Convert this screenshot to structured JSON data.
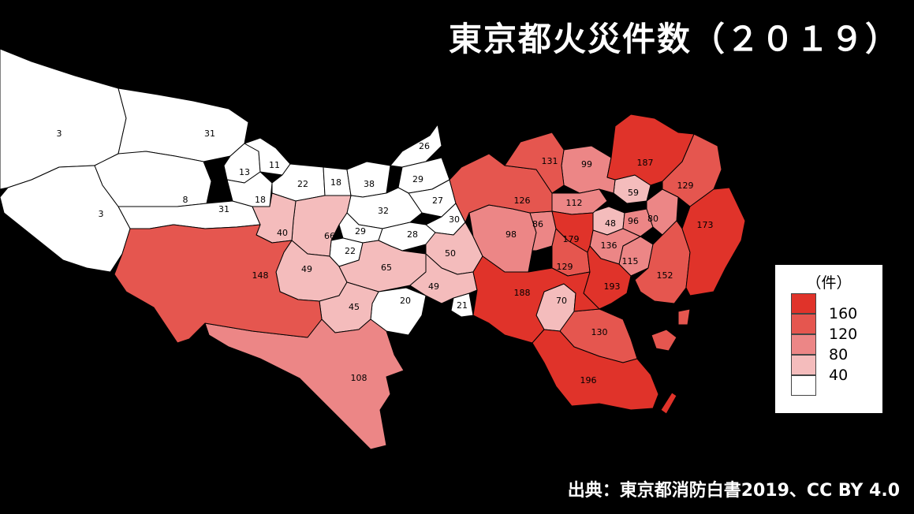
{
  "title": "東京都火災件数（２０１９）",
  "source": "出典：東京都消防白書2019、CC BY 4.0",
  "colors": {
    "background": "#000000",
    "c1": "#ffffff",
    "c2": "#f4bcbc",
    "c3": "#ec8686",
    "c4": "#e5564f",
    "c5": "#e0332a"
  },
  "legend": {
    "unit": "（件）",
    "items": [
      {
        "label": "160",
        "color": "#e0332a"
      },
      {
        "label": "120",
        "color": "#e5564f"
      },
      {
        "label": "80",
        "color": "#ec8686"
      },
      {
        "label": "40",
        "color": "#f4bcbc"
      },
      {
        "label": "",
        "color": "#ffffff"
      }
    ],
    "bottom_label": "40"
  },
  "regions": [
    {
      "id": "okutama",
      "value": "3"
    },
    {
      "id": "hinohara",
      "value": "3"
    },
    {
      "id": "ome",
      "value": "31"
    },
    {
      "id": "akiruno",
      "value": "31"
    },
    {
      "id": "hinode",
      "value": "8"
    },
    {
      "id": "hamura",
      "value": "13"
    },
    {
      "id": "mizuho",
      "value": "11"
    },
    {
      "id": "fussa",
      "value": "18"
    },
    {
      "id": "musashimurayama",
      "value": "22"
    },
    {
      "id": "higashiyamato",
      "value": "18"
    },
    {
      "id": "higashimurayama",
      "value": "38"
    },
    {
      "id": "kiyose",
      "value": "26"
    },
    {
      "id": "higashikurume",
      "value": "29"
    },
    {
      "id": "nishitokyo",
      "value": "27"
    },
    {
      "id": "kodaira",
      "value": "32"
    },
    {
      "id": "musashino",
      "value": "30"
    },
    {
      "id": "kokubunji",
      "value": "29"
    },
    {
      "id": "koganei",
      "value": "28"
    },
    {
      "id": "tachikawa",
      "value": "66"
    },
    {
      "id": "akishima",
      "value": "40"
    },
    {
      "id": "kunitachi",
      "value": "22"
    },
    {
      "id": "hino",
      "value": "49"
    },
    {
      "id": "fuchu",
      "value": "65"
    },
    {
      "id": "mitaka",
      "value": "50"
    },
    {
      "id": "chofu",
      "value": "49"
    },
    {
      "id": "komae",
      "value": "21"
    },
    {
      "id": "inagi",
      "value": "20"
    },
    {
      "id": "tama",
      "value": "45"
    },
    {
      "id": "hachioji",
      "value": "148"
    },
    {
      "id": "machida",
      "value": "108"
    },
    {
      "id": "nerima",
      "value": "126"
    },
    {
      "id": "itabashi",
      "value": "131"
    },
    {
      "id": "kita",
      "value": "99"
    },
    {
      "id": "adachi",
      "value": "187"
    },
    {
      "id": "katsushika",
      "value": "129"
    },
    {
      "id": "edogawa",
      "value": "173"
    },
    {
      "id": "toshima",
      "value": "112"
    },
    {
      "id": "arakawa",
      "value": "59"
    },
    {
      "id": "suginami",
      "value": "98"
    },
    {
      "id": "nakano",
      "value": "86"
    },
    {
      "id": "shinjuku",
      "value": "179"
    },
    {
      "id": "bunkyo",
      "value": "48"
    },
    {
      "id": "taito",
      "value": "96"
    },
    {
      "id": "sumida",
      "value": "80"
    },
    {
      "id": "chiyoda",
      "value": "136"
    },
    {
      "id": "chuo",
      "value": "115"
    },
    {
      "id": "koto",
      "value": "152"
    },
    {
      "id": "shibuya",
      "value": "129"
    },
    {
      "id": "minato",
      "value": "193"
    },
    {
      "id": "setagaya",
      "value": "188"
    },
    {
      "id": "meguro",
      "value": "70"
    },
    {
      "id": "shinagawa",
      "value": "130"
    },
    {
      "id": "ota",
      "value": "196"
    }
  ]
}
